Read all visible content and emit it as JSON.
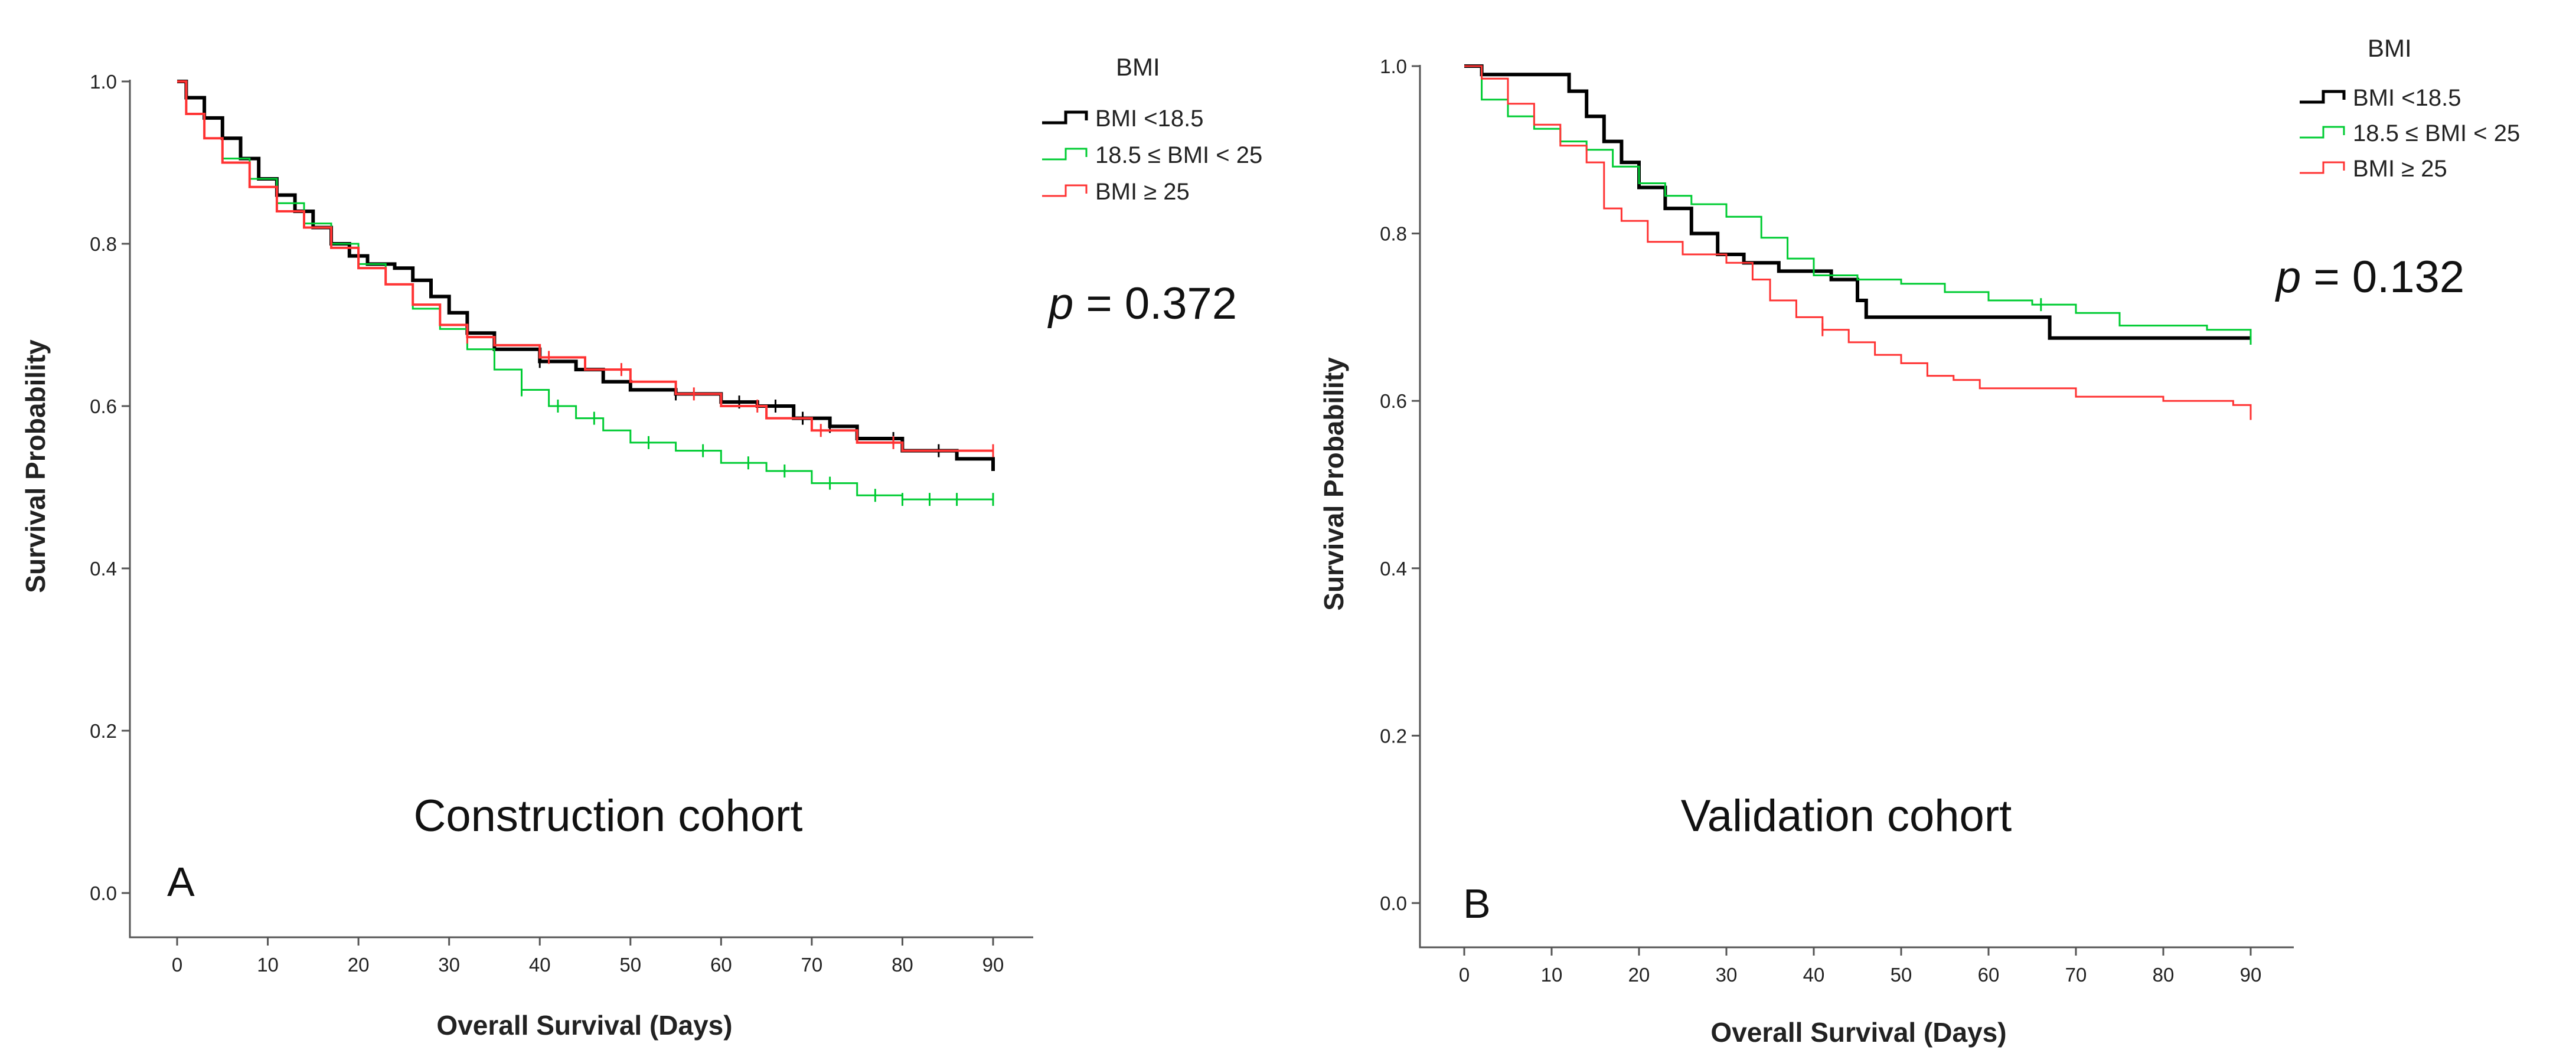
{
  "chart_data": [
    {
      "type": "line",
      "subtype": "kaplan-meier",
      "panel": "A",
      "title": "Construction cohort",
      "xlabel": "Overall Survival (Days)",
      "ylabel": "Survival Probability",
      "xlim": [
        -5,
        95
      ],
      "ylim": [
        -0.03,
        1.02
      ],
      "xticks": [
        0,
        10,
        20,
        30,
        40,
        50,
        60,
        70,
        80,
        90
      ],
      "yticks": [
        0.0,
        0.2,
        0.4,
        0.6,
        0.8,
        1.0
      ],
      "ytick_labels": [
        "0.0",
        "0.2",
        "0.4",
        "0.6",
        "0.8",
        "1.0"
      ],
      "legend_title": "BMI",
      "p_prefix": "p",
      "p_text": " = 0.372",
      "series": [
        {
          "name": "BMI <18.5",
          "color": "#000000",
          "stroke_width": 6,
          "points": [
            [
              0,
              1.0
            ],
            [
              1,
              0.98
            ],
            [
              3,
              0.955
            ],
            [
              5,
              0.93
            ],
            [
              7,
              0.905
            ],
            [
              9,
              0.88
            ],
            [
              11,
              0.86
            ],
            [
              13,
              0.84
            ],
            [
              15,
              0.82
            ],
            [
              17,
              0.8
            ],
            [
              19,
              0.785
            ],
            [
              21,
              0.775
            ],
            [
              24,
              0.77
            ],
            [
              26,
              0.755
            ],
            [
              28,
              0.735
            ],
            [
              30,
              0.715
            ],
            [
              32,
              0.69
            ],
            [
              35,
              0.67
            ],
            [
              40,
              0.655
            ],
            [
              44,
              0.645
            ],
            [
              47,
              0.63
            ],
            [
              50,
              0.62
            ],
            [
              55,
              0.615
            ],
            [
              60,
              0.605
            ],
            [
              64,
              0.6
            ],
            [
              68,
              0.585
            ],
            [
              72,
              0.575
            ],
            [
              75,
              0.56
            ],
            [
              80,
              0.545
            ],
            [
              86,
              0.535
            ],
            [
              90,
              0.52
            ]
          ],
          "censor_x": [
            40,
            55,
            62,
            66,
            69,
            72,
            79,
            84
          ]
        },
        {
          "name": "18.5 ≤ BMI < 25",
          "color": "#00cc33",
          "stroke_width": 3,
          "points": [
            [
              0,
              1.0
            ],
            [
              1,
              0.96
            ],
            [
              3,
              0.93
            ],
            [
              5,
              0.905
            ],
            [
              8,
              0.88
            ],
            [
              11,
              0.85
            ],
            [
              14,
              0.825
            ],
            [
              17,
              0.8
            ],
            [
              20,
              0.775
            ],
            [
              23,
              0.75
            ],
            [
              26,
              0.72
            ],
            [
              29,
              0.695
            ],
            [
              32,
              0.67
            ],
            [
              35,
              0.645
            ],
            [
              38,
              0.62
            ],
            [
              41,
              0.6
            ],
            [
              44,
              0.585
            ],
            [
              47,
              0.57
            ],
            [
              50,
              0.555
            ],
            [
              55,
              0.545
            ],
            [
              60,
              0.53
            ],
            [
              65,
              0.52
            ],
            [
              70,
              0.505
            ],
            [
              75,
              0.49
            ],
            [
              80,
              0.485
            ],
            [
              90,
              0.485
            ]
          ],
          "censor_x": [
            38,
            42,
            46,
            52,
            58,
            63,
            67,
            72,
            77,
            80,
            83,
            86,
            90
          ]
        },
        {
          "name": "BMI ≥ 25",
          "color": "#ff3333",
          "stroke_width": 4,
          "points": [
            [
              0,
              1.0
            ],
            [
              1,
              0.96
            ],
            [
              3,
              0.93
            ],
            [
              5,
              0.9
            ],
            [
              8,
              0.87
            ],
            [
              11,
              0.84
            ],
            [
              14,
              0.82
            ],
            [
              17,
              0.795
            ],
            [
              20,
              0.77
            ],
            [
              23,
              0.75
            ],
            [
              26,
              0.725
            ],
            [
              29,
              0.7
            ],
            [
              32,
              0.685
            ],
            [
              35,
              0.675
            ],
            [
              40,
              0.66
            ],
            [
              45,
              0.645
            ],
            [
              50,
              0.63
            ],
            [
              55,
              0.615
            ],
            [
              60,
              0.6
            ],
            [
              65,
              0.585
            ],
            [
              70,
              0.57
            ],
            [
              75,
              0.555
            ],
            [
              80,
              0.545
            ],
            [
              90,
              0.545
            ]
          ],
          "censor_x": [
            32,
            41,
            49,
            57,
            64,
            71,
            79,
            90
          ]
        }
      ]
    },
    {
      "type": "line",
      "subtype": "kaplan-meier",
      "panel": "B",
      "title": "Validation cohort",
      "xlabel": "Overall Survival (Days)",
      "ylabel": "Survival Probability",
      "xlim": [
        -5,
        95
      ],
      "ylim": [
        -0.03,
        1.02
      ],
      "xticks": [
        0,
        10,
        20,
        30,
        40,
        50,
        60,
        70,
        80,
        90
      ],
      "yticks": [
        0.0,
        0.2,
        0.4,
        0.6,
        0.8,
        1.0
      ],
      "ytick_labels": [
        "0.0",
        "0.2",
        "0.4",
        "0.6",
        "0.8",
        "1.0"
      ],
      "legend_title": "BMI",
      "p_prefix": "p",
      "p_text": " = 0.132",
      "series": [
        {
          "name": "BMI <18.5",
          "color": "#000000",
          "stroke_width": 6,
          "points": [
            [
              0,
              1.0
            ],
            [
              2,
              0.99
            ],
            [
              10,
              0.99
            ],
            [
              12,
              0.97
            ],
            [
              14,
              0.94
            ],
            [
              16,
              0.91
            ],
            [
              18,
              0.885
            ],
            [
              20,
              0.855
            ],
            [
              23,
              0.83
            ],
            [
              26,
              0.8
            ],
            [
              29,
              0.775
            ],
            [
              32,
              0.765
            ],
            [
              36,
              0.755
            ],
            [
              42,
              0.745
            ],
            [
              45,
              0.72
            ],
            [
              46,
              0.7
            ],
            [
              65,
              0.7
            ],
            [
              67,
              0.675
            ],
            [
              90,
              0.675
            ]
          ],
          "censor_x": [
            90
          ]
        },
        {
          "name": "18.5 ≤ BMI < 25",
          "color": "#00cc33",
          "stroke_width": 3,
          "points": [
            [
              0,
              1.0
            ],
            [
              2,
              0.96
            ],
            [
              5,
              0.94
            ],
            [
              8,
              0.925
            ],
            [
              11,
              0.91
            ],
            [
              14,
              0.9
            ],
            [
              17,
              0.88
            ],
            [
              20,
              0.86
            ],
            [
              23,
              0.845
            ],
            [
              26,
              0.835
            ],
            [
              30,
              0.82
            ],
            [
              34,
              0.795
            ],
            [
              37,
              0.77
            ],
            [
              40,
              0.75
            ],
            [
              45,
              0.745
            ],
            [
              50,
              0.74
            ],
            [
              55,
              0.73
            ],
            [
              60,
              0.72
            ],
            [
              65,
              0.715
            ],
            [
              70,
              0.705
            ],
            [
              75,
              0.69
            ],
            [
              85,
              0.685
            ],
            [
              90,
              0.675
            ]
          ],
          "censor_x": [
            66,
            90
          ]
        },
        {
          "name": "BMI ≥ 25",
          "color": "#ff3333",
          "stroke_width": 3,
          "points": [
            [
              0,
              1.0
            ],
            [
              2,
              0.985
            ],
            [
              5,
              0.955
            ],
            [
              8,
              0.93
            ],
            [
              11,
              0.905
            ],
            [
              14,
              0.885
            ],
            [
              16,
              0.83
            ],
            [
              18,
              0.815
            ],
            [
              21,
              0.79
            ],
            [
              25,
              0.775
            ],
            [
              30,
              0.765
            ],
            [
              33,
              0.745
            ],
            [
              35,
              0.72
            ],
            [
              38,
              0.7
            ],
            [
              41,
              0.685
            ],
            [
              44,
              0.67
            ],
            [
              47,
              0.655
            ],
            [
              50,
              0.645
            ],
            [
              53,
              0.63
            ],
            [
              56,
              0.625
            ],
            [
              59,
              0.615
            ],
            [
              65,
              0.615
            ],
            [
              70,
              0.605
            ],
            [
              80,
              0.6
            ],
            [
              88,
              0.595
            ],
            [
              90,
              0.585
            ]
          ],
          "censor_x": [
            41,
            90
          ]
        }
      ]
    }
  ]
}
